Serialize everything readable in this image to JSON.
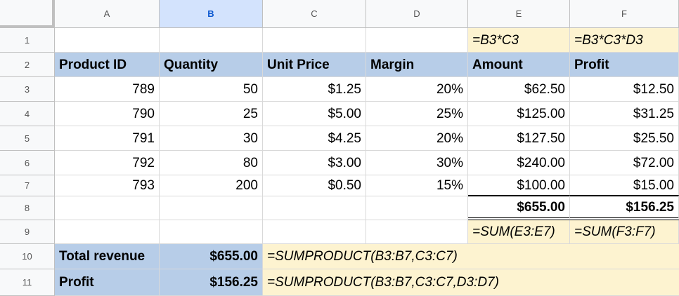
{
  "columns": [
    "A",
    "B",
    "C",
    "D",
    "E",
    "F"
  ],
  "rows": [
    "1",
    "2",
    "3",
    "4",
    "5",
    "6",
    "7",
    "8",
    "9",
    "10",
    "11"
  ],
  "formula_notes": {
    "e1": "=B3*C3",
    "f1": "=B3*C3*D3",
    "e9": "=SUM(E3:E7)",
    "f9": "=SUM(F3:F7)",
    "c10": "=SUMPRODUCT(B3:B7,C3:C7)",
    "c11": "=SUMPRODUCT(B3:B7,C3:C7,D3:D7)"
  },
  "headers": {
    "a": "Product ID",
    "b": "Quantity",
    "c": "Unit Price",
    "d": "Margin",
    "e": "Amount",
    "f": "Profit"
  },
  "data": [
    {
      "id": "789",
      "qty": "50",
      "price": "$1.25",
      "margin": "20%",
      "amount": "$62.50",
      "profit": "$12.50"
    },
    {
      "id": "790",
      "qty": "25",
      "price": "$5.00",
      "margin": "25%",
      "amount": "$125.00",
      "profit": "$31.25"
    },
    {
      "id": "791",
      "qty": "30",
      "price": "$4.25",
      "margin": "20%",
      "amount": "$127.50",
      "profit": "$25.50"
    },
    {
      "id": "792",
      "qty": "80",
      "price": "$3.00",
      "margin": "30%",
      "amount": "$240.00",
      "profit": "$72.00"
    },
    {
      "id": "793",
      "qty": "200",
      "price": "$0.50",
      "margin": "15%",
      "amount": "$100.00",
      "profit": "$15.00"
    }
  ],
  "totals": {
    "amount": "$655.00",
    "profit": "$156.25"
  },
  "summary": {
    "revenue_label": "Total revenue",
    "revenue_value": "$655.00",
    "profit_label": "Profit",
    "profit_value": "$156.25"
  },
  "colors": {
    "header_blue": "#b7cde8",
    "note_yellow": "#fdf3d0",
    "selected_col": "#d3e3fd"
  }
}
